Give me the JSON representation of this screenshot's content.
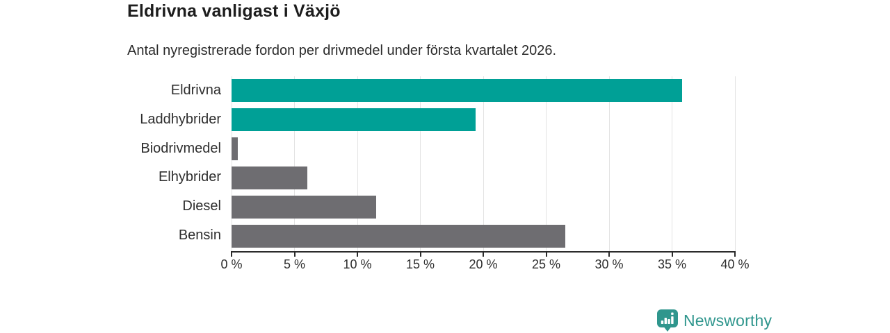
{
  "header": {
    "title": "Eldrivna vanligast i Växjö",
    "subtitle": "Antal nyregistrerade fordon per drivmedel under första kvartalet 2026."
  },
  "chart_data": {
    "type": "bar",
    "orientation": "horizontal",
    "title": "Eldrivna vanligast i Växjö",
    "subtitle": "Antal nyregistrerade fordon per drivmedel under första kvartalet 2026.",
    "categories": [
      "Eldrivna",
      "Laddhybrider",
      "Biodrivmedel",
      "Elhybrider",
      "Diesel",
      "Bensin"
    ],
    "values": [
      35.8,
      19.4,
      0.5,
      6.0,
      11.5,
      26.5
    ],
    "unit": "%",
    "xlim": [
      0,
      40
    ],
    "x_ticks": [
      0,
      5,
      10,
      15,
      20,
      25,
      30,
      35,
      40
    ],
    "x_tick_labels": [
      "0 %",
      "5 %",
      "10 %",
      "15 %",
      "20 %",
      "25 %",
      "30 %",
      "35 %",
      "40 %"
    ],
    "bar_colors": [
      "#00a096",
      "#00a096",
      "#6e6d71",
      "#6e6d71",
      "#6e6d71",
      "#6e6d71"
    ],
    "grid": true,
    "legend": "none"
  },
  "footer": {
    "brand": "Newsworthy"
  },
  "colors": {
    "teal": "#00a096",
    "gray": "#6e6d71",
    "brand_teal": "#2f968d",
    "grid": "#e3e3e3",
    "axis": "#2b2b2b",
    "text": "#2e2e2e"
  }
}
